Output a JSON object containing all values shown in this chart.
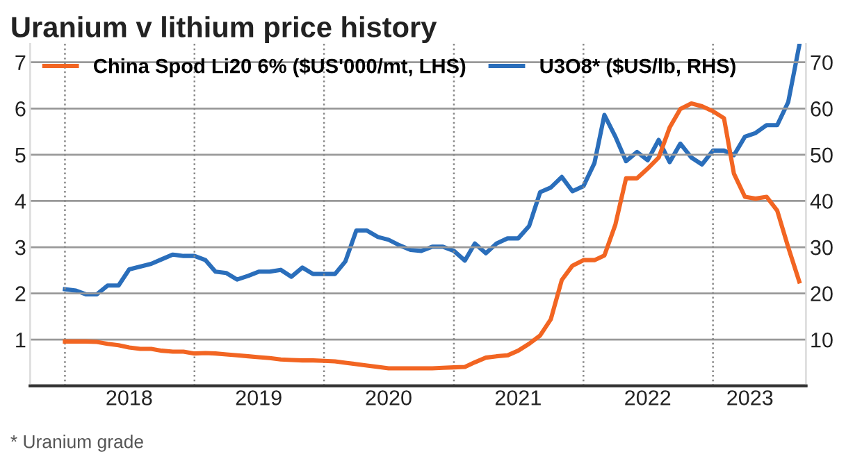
{
  "chart_data": {
    "type": "line",
    "title": "Uranium v lithium price history",
    "annotations": [
      "* Uranium grade"
    ],
    "x": [
      "2018-01",
      "2018-02",
      "2018-03",
      "2018-04",
      "2018-05",
      "2018-06",
      "2018-07",
      "2018-08",
      "2018-09",
      "2018-10",
      "2018-11",
      "2018-12",
      "2019-01",
      "2019-02",
      "2019-03",
      "2019-04",
      "2019-05",
      "2019-06",
      "2019-07",
      "2019-08",
      "2019-09",
      "2019-10",
      "2019-11",
      "2019-12",
      "2020-01",
      "2020-02",
      "2020-03",
      "2020-04",
      "2020-05",
      "2020-06",
      "2020-07",
      "2020-08",
      "2020-09",
      "2020-10",
      "2020-11",
      "2020-12",
      "2021-01",
      "2021-02",
      "2021-03",
      "2021-04",
      "2021-05",
      "2021-06",
      "2021-07",
      "2021-08",
      "2021-09",
      "2021-10",
      "2021-11",
      "2021-12",
      "2022-01",
      "2022-02",
      "2022-03",
      "2022-04",
      "2022-05",
      "2022-06",
      "2022-07",
      "2022-08",
      "2022-09",
      "2022-10",
      "2022-11",
      "2022-12",
      "2023-01",
      "2023-02",
      "2023-03",
      "2023-04",
      "2023-05",
      "2023-06",
      "2023-07",
      "2023-08",
      "2023-09"
    ],
    "series": [
      {
        "name": "China Spod Li20 6% ($US'000/mt, LHS)",
        "color": "#f26522",
        "values": [
          0.96,
          0.96,
          0.96,
          0.95,
          0.91,
          0.88,
          0.83,
          0.8,
          0.8,
          0.76,
          0.74,
          0.74,
          0.7,
          0.71,
          0.7,
          0.68,
          0.66,
          0.64,
          0.62,
          0.6,
          0.57,
          0.56,
          0.55,
          0.55,
          0.54,
          0.53,
          0.5,
          0.47,
          0.44,
          0.41,
          0.38,
          0.38,
          0.38,
          0.38,
          0.38,
          0.39,
          0.4,
          0.41,
          0.51,
          0.61,
          0.64,
          0.66,
          0.76,
          0.91,
          1.09,
          1.44,
          2.29,
          2.6,
          2.72,
          2.72,
          2.82,
          3.49,
          4.49,
          4.49,
          4.7,
          4.94,
          5.59,
          5.99,
          6.11,
          6.05,
          5.94,
          5.79,
          4.59,
          4.09,
          4.05,
          4.09,
          3.79,
          3.0,
          2.26
        ]
      },
      {
        "name": "U3O8* ($US/lb, RHS)",
        "color": "#2a6ebb",
        "axis": "y2",
        "values": [
          20.9,
          20.6,
          19.8,
          19.8,
          21.7,
          21.7,
          25.2,
          25.8,
          26.4,
          27.4,
          28.4,
          28.1,
          28.1,
          27.2,
          24.7,
          24.4,
          23.0,
          23.8,
          24.7,
          24.7,
          25.1,
          23.6,
          25.6,
          24.2,
          24.2,
          24.2,
          26.9,
          33.6,
          33.6,
          32.2,
          31.6,
          30.4,
          29.4,
          29.2,
          30.1,
          30.1,
          29.2,
          27.1,
          30.8,
          28.7,
          30.8,
          31.9,
          31.9,
          34.6,
          41.9,
          42.9,
          45.2,
          42.1,
          43.2,
          48.2,
          58.6,
          53.9,
          48.6,
          50.6,
          48.8,
          53.2,
          48.4,
          52.4,
          49.4,
          47.9,
          50.9,
          50.9,
          49.9,
          53.9,
          54.7,
          56.4,
          56.4,
          61.4,
          73.6
        ]
      }
    ],
    "xlim": [
      "2017-09-25",
      "2023-09-20"
    ],
    "xticks": [
      {
        "value": "2018-07-01",
        "label": "2018"
      },
      {
        "value": "2019-07-01",
        "label": "2019"
      },
      {
        "value": "2020-07-01",
        "label": "2020"
      },
      {
        "value": "2021-07-01",
        "label": "2021"
      },
      {
        "value": "2022-07-01",
        "label": "2022"
      },
      {
        "value": "2023-04-15",
        "label": "2023"
      }
    ],
    "ylim": [
      0,
      7.4
    ],
    "yticks": [
      1,
      2,
      3,
      4,
      5,
      6,
      7
    ],
    "y2lim": [
      0,
      74
    ],
    "y2ticks": [
      10,
      20,
      30,
      40,
      50,
      60,
      70
    ],
    "ref_lines": [
      {
        "axis": "x",
        "value": "2018-01-01",
        "line_style": "dotted",
        "color": "#888888"
      },
      {
        "axis": "x",
        "value": "2019-01-01",
        "line_style": "dotted",
        "color": "#888888"
      },
      {
        "axis": "x",
        "value": "2020-01-01",
        "line_style": "dotted",
        "color": "#888888"
      },
      {
        "axis": "x",
        "value": "2021-01-01",
        "line_style": "dotted",
        "color": "#888888"
      },
      {
        "axis": "x",
        "value": "2022-01-01",
        "line_style": "dotted",
        "color": "#888888"
      },
      {
        "axis": "x",
        "value": "2023-01-01",
        "line_style": "dotted",
        "color": "#888888"
      }
    ],
    "grid": "y",
    "legend": "top left",
    "line_style": "solid",
    "marker": "none"
  }
}
